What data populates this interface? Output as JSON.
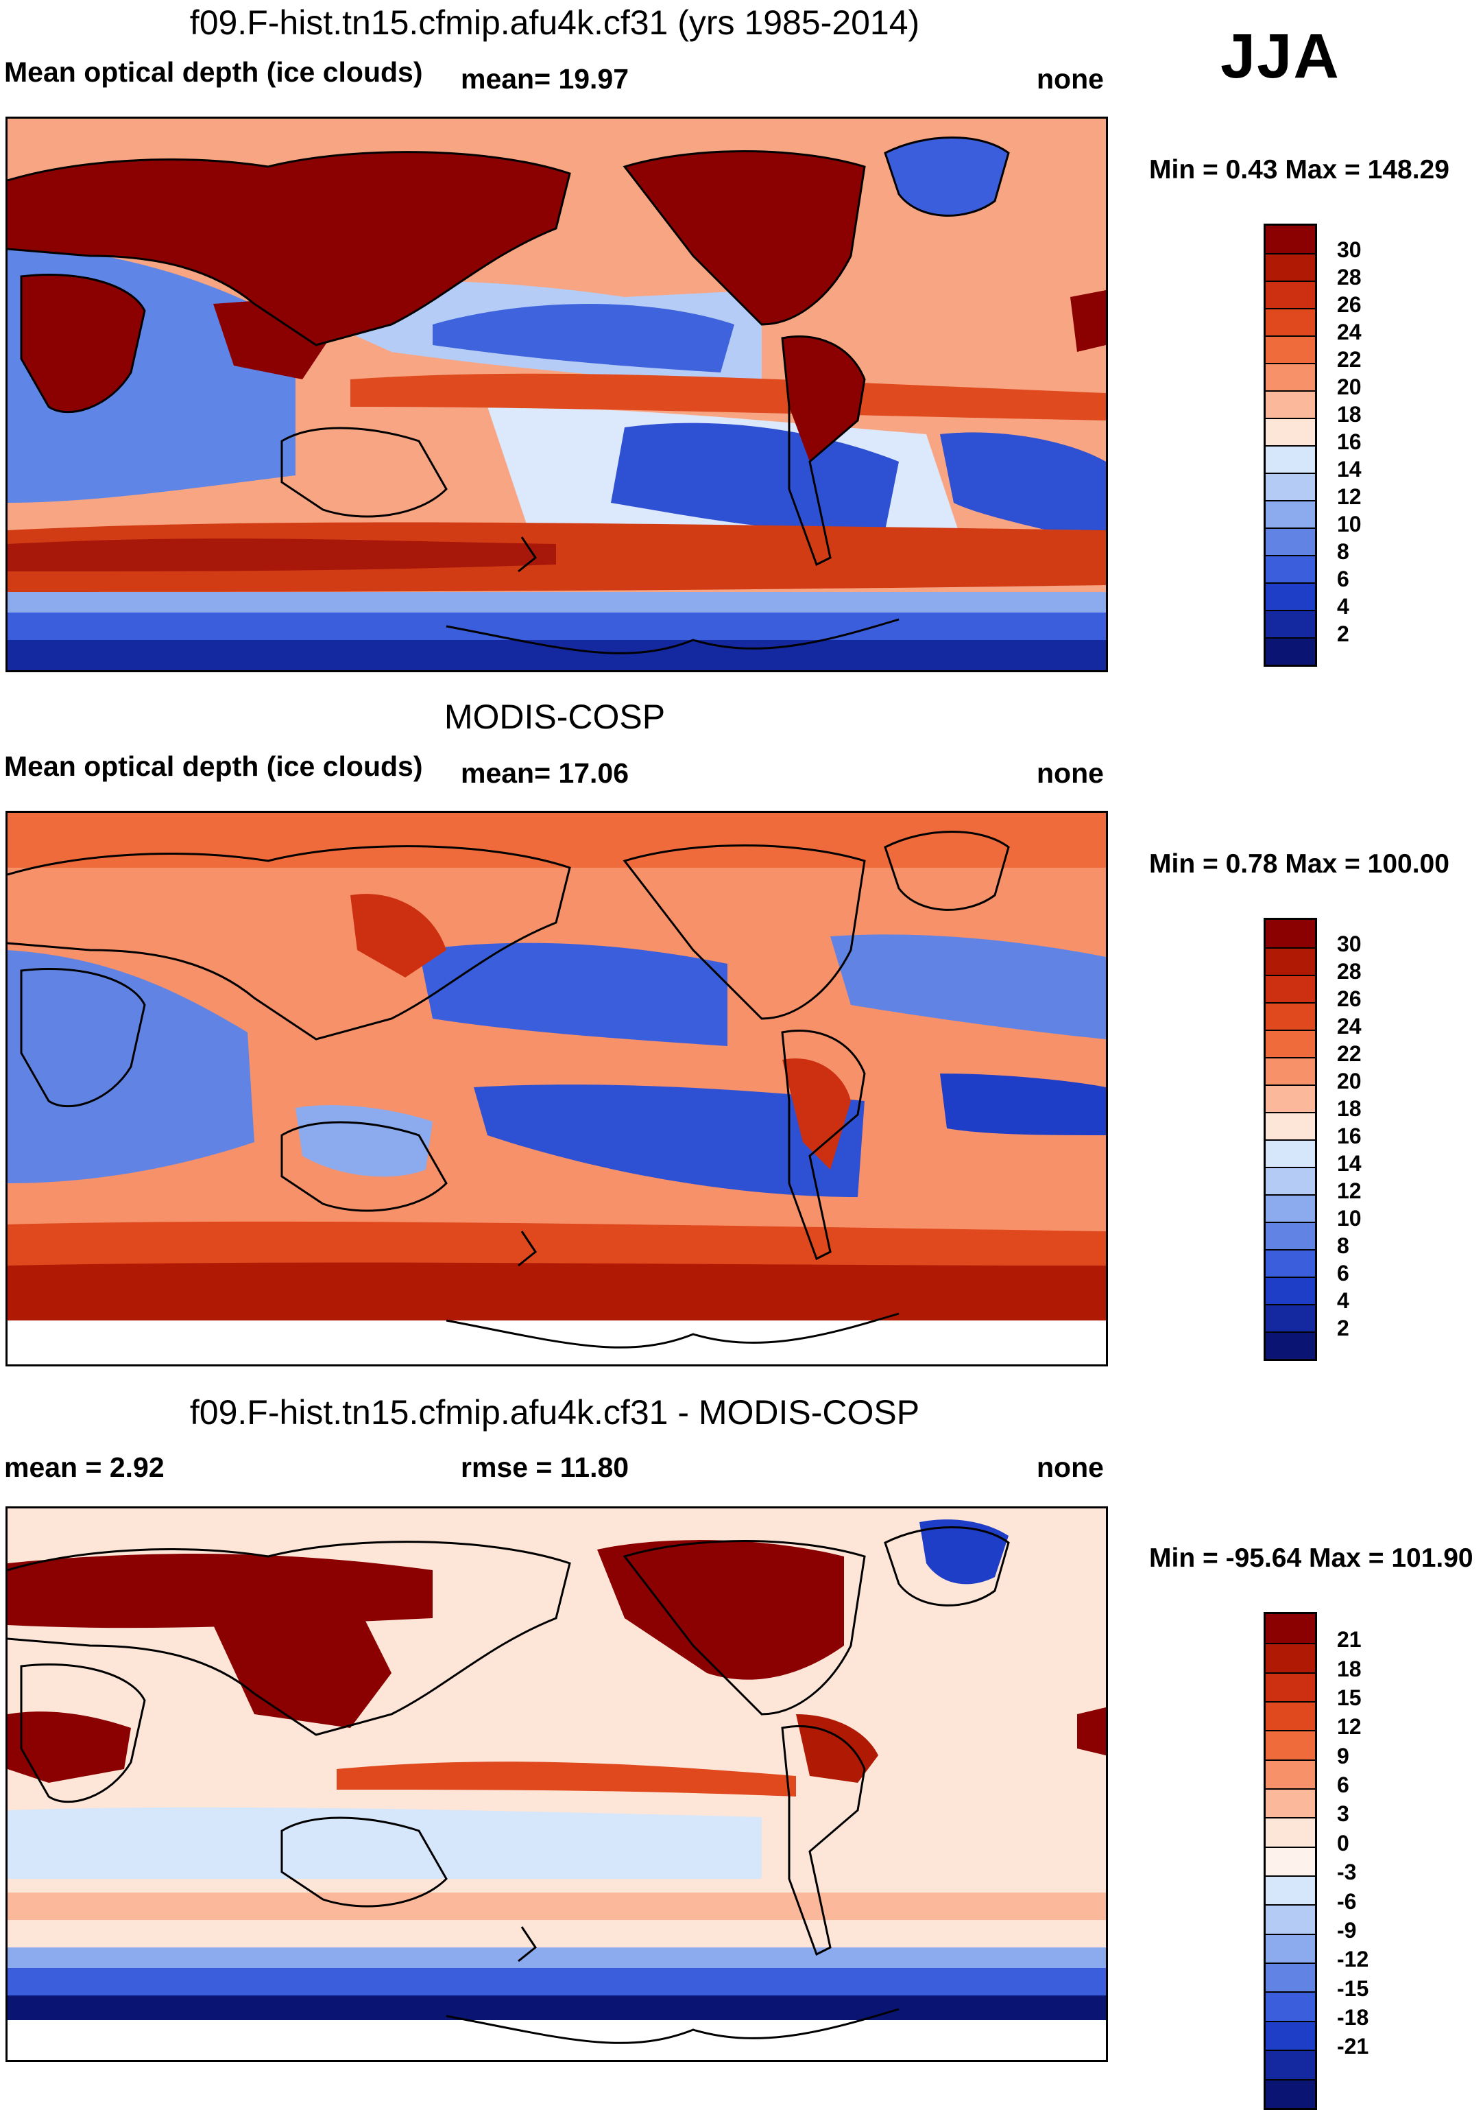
{
  "season": "JJA",
  "panels": [
    {
      "title": "f09.F-hist.tn15.cfmip.afu4k.cf31 (yrs 1985-2014)",
      "left_text": "Mean optical depth (ice clouds)",
      "mid_text": "mean=  19.97",
      "right_text": "none",
      "minmax": "Min =   0.43 Max = 148.29",
      "colorbar": {
        "colors": [
          "#8b0000",
          "#b01a05",
          "#cc3010",
          "#e0481e",
          "#ef6b3c",
          "#f6916a",
          "#fbb89a",
          "#fde6d8",
          "#d6e6fb",
          "#b3cbf5",
          "#8cabee",
          "#6184e4",
          "#3a5edc",
          "#1f3ec8",
          "#1428a0",
          "#0a1472"
        ],
        "labels": [
          "30",
          "28",
          "26",
          "24",
          "22",
          "20",
          "18",
          "16",
          "14",
          "12",
          "10",
          "8",
          "6",
          "4",
          "2"
        ]
      }
    },
    {
      "title": "MODIS-COSP",
      "left_text": "Mean optical depth (ice clouds)",
      "mid_text": "mean=  17.06",
      "right_text": "none",
      "minmax": "Min =   0.78 Max = 100.00",
      "colorbar": {
        "colors": [
          "#8b0000",
          "#b01a05",
          "#cc3010",
          "#e0481e",
          "#ef6b3c",
          "#f6916a",
          "#fbb89a",
          "#fde6d8",
          "#d6e6fb",
          "#b3cbf5",
          "#8cabee",
          "#6184e4",
          "#3a5edc",
          "#1f3ec8",
          "#1428a0",
          "#0a1472"
        ],
        "labels": [
          "30",
          "28",
          "26",
          "24",
          "22",
          "20",
          "18",
          "16",
          "14",
          "12",
          "10",
          "8",
          "6",
          "4",
          "2"
        ]
      }
    },
    {
      "title": "f09.F-hist.tn15.cfmip.afu4k.cf31 - MODIS-COSP",
      "left_text": "mean =   2.92",
      "mid_text": "rmse =  11.80",
      "right_text": "none",
      "minmax": "Min = -95.64 Max = 101.90",
      "colorbar": {
        "colors": [
          "#8b0000",
          "#b01a05",
          "#cc3010",
          "#e0481e",
          "#ef6b3c",
          "#f6916a",
          "#fbb89a",
          "#fde6d8",
          "#fdf3ec",
          "#d6e6fb",
          "#b3cbf5",
          "#8cabee",
          "#6184e4",
          "#3a5edc",
          "#1f3ec8",
          "#1428a0",
          "#0a1472"
        ],
        "labels": [
          "21",
          "18",
          "15",
          "12",
          "9",
          "6",
          "3",
          "0",
          "-3",
          "-6",
          "-9",
          "-12",
          "-15",
          "-18",
          "-21"
        ]
      }
    }
  ]
}
